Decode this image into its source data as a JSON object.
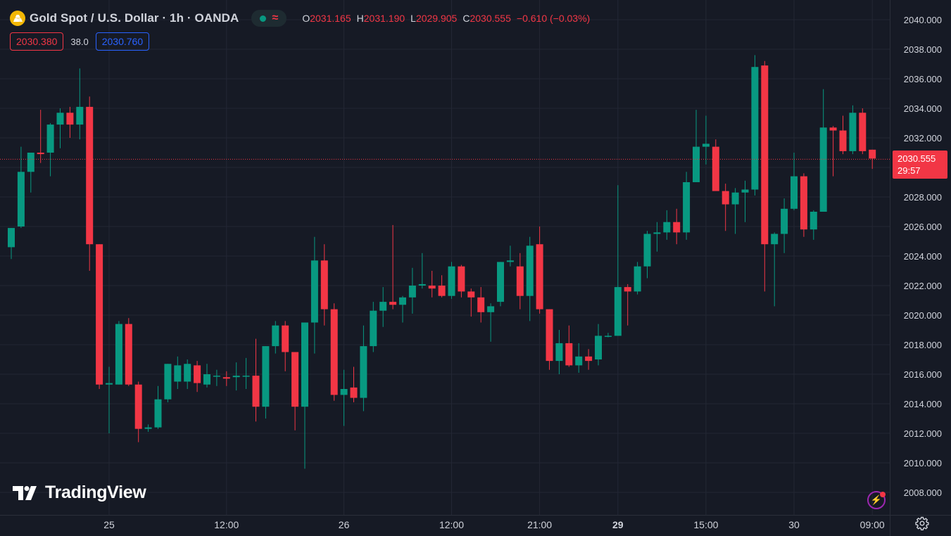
{
  "header": {
    "symbol_title": "Gold Spot / U.S. Dollar · 1h · OANDA",
    "ohlc": {
      "o_label": "O",
      "o_value": "2031.165",
      "h_label": "H",
      "h_value": "2031.190",
      "l_label": "L",
      "l_value": "2029.905",
      "c_label": "C",
      "c_value": "2030.555",
      "change": "−0.610 (−0.03%)"
    }
  },
  "quote": {
    "sell": "2030.380",
    "spread": "38.0",
    "buy": "2030.760"
  },
  "price_tag": {
    "price": "2030.555",
    "countdown": "29:57"
  },
  "logo_text": "TradingView",
  "icons": {
    "symbol": "gold-bars-icon",
    "status_dot": "market-open-dot-icon",
    "wave": "wave-icon",
    "alert": "lightning-bolt-icon",
    "settings": "gear-icon",
    "logo": "tradingview-logo-icon"
  },
  "colors": {
    "background": "#161a25",
    "up": "#089981",
    "down": "#f23645",
    "grid": "#232734",
    "axis_text": "#d1d4dc"
  },
  "chart_data": {
    "type": "candlestick",
    "title": "Gold Spot / U.S. Dollar · 1h · OANDA",
    "y_axis_side": "right",
    "ylim": [
      2007,
      2041
    ],
    "y_ticks": [
      "2040.000",
      "2038.000",
      "2036.000",
      "2034.000",
      "2032.000",
      "2030.000",
      "2028.000",
      "2026.000",
      "2024.000",
      "2022.000",
      "2020.000",
      "2018.000",
      "2016.000",
      "2014.000",
      "2012.000",
      "2010.000",
      "2008.000"
    ],
    "x_ticks": [
      {
        "label": "25",
        "index": 10,
        "bold": false
      },
      {
        "label": "12:00",
        "index": 22,
        "bold": false
      },
      {
        "label": "26",
        "index": 34,
        "bold": false
      },
      {
        "label": "12:00",
        "index": 45,
        "bold": false
      },
      {
        "label": "21:00",
        "index": 54,
        "bold": false
      },
      {
        "label": "29",
        "index": 62,
        "bold": true
      },
      {
        "label": "15:00",
        "index": 71,
        "bold": false
      },
      {
        "label": "30",
        "index": 80,
        "bold": false
      },
      {
        "label": "09:00",
        "index": 88,
        "bold": false
      }
    ],
    "last_price": 2030.555,
    "candles": [
      {
        "o": 2024.6,
        "h": 2025.9,
        "l": 2023.8,
        "c": 2025.9
      },
      {
        "o": 2026.0,
        "h": 2031.4,
        "l": 2025.9,
        "c": 2029.7
      },
      {
        "o": 2029.7,
        "h": 2031.0,
        "l": 2028.3,
        "c": 2031.0
      },
      {
        "o": 2031.0,
        "h": 2033.9,
        "l": 2030.3,
        "c": 2030.9
      },
      {
        "o": 2031.0,
        "h": 2033.0,
        "l": 2029.4,
        "c": 2032.9
      },
      {
        "o": 2032.9,
        "h": 2034.0,
        "l": 2031.3,
        "c": 2033.7
      },
      {
        "o": 2033.7,
        "h": 2034.1,
        "l": 2032.0,
        "c": 2032.9
      },
      {
        "o": 2032.9,
        "h": 2036.7,
        "l": 2031.9,
        "c": 2034.1
      },
      {
        "o": 2034.1,
        "h": 2034.8,
        "l": 2023.0,
        "c": 2024.8
      },
      {
        "o": 2024.8,
        "h": 2024.8,
        "l": 2015.0,
        "c": 2015.3
      },
      {
        "o": 2015.3,
        "h": 2016.5,
        "l": 2012.0,
        "c": 2015.4
      },
      {
        "o": 2015.3,
        "h": 2019.6,
        "l": 2015.3,
        "c": 2019.4
      },
      {
        "o": 2019.4,
        "h": 2019.8,
        "l": 2015.2,
        "c": 2015.3
      },
      {
        "o": 2015.3,
        "h": 2015.5,
        "l": 2011.4,
        "c": 2012.3
      },
      {
        "o": 2012.3,
        "h": 2012.6,
        "l": 2012.1,
        "c": 2012.4
      },
      {
        "o": 2012.4,
        "h": 2015.2,
        "l": 2012.3,
        "c": 2014.3
      },
      {
        "o": 2014.3,
        "h": 2016.7,
        "l": 2014.1,
        "c": 2016.7
      },
      {
        "o": 2015.5,
        "h": 2017.2,
        "l": 2015.0,
        "c": 2016.6
      },
      {
        "o": 2015.5,
        "h": 2017.0,
        "l": 2015.0,
        "c": 2016.7
      },
      {
        "o": 2016.6,
        "h": 2016.9,
        "l": 2014.8,
        "c": 2015.4
      },
      {
        "o": 2015.3,
        "h": 2016.7,
        "l": 2015.1,
        "c": 2016.0
      },
      {
        "o": 2015.9,
        "h": 2016.3,
        "l": 2015.2,
        "c": 2015.9
      },
      {
        "o": 2015.8,
        "h": 2016.2,
        "l": 2015.2,
        "c": 2015.7
      },
      {
        "o": 2015.8,
        "h": 2016.8,
        "l": 2014.9,
        "c": 2015.9
      },
      {
        "o": 2015.9,
        "h": 2017.1,
        "l": 2015.0,
        "c": 2015.9
      },
      {
        "o": 2015.9,
        "h": 2018.4,
        "l": 2012.8,
        "c": 2013.8
      },
      {
        "o": 2013.8,
        "h": 2017.9,
        "l": 2013.0,
        "c": 2017.9
      },
      {
        "o": 2017.9,
        "h": 2019.6,
        "l": 2017.4,
        "c": 2019.3
      },
      {
        "o": 2019.3,
        "h": 2019.6,
        "l": 2016.2,
        "c": 2017.5
      },
      {
        "o": 2017.5,
        "h": 2017.5,
        "l": 2012.2,
        "c": 2013.8
      },
      {
        "o": 2013.8,
        "h": 2019.4,
        "l": 2009.6,
        "c": 2019.5
      },
      {
        "o": 2019.5,
        "h": 2025.3,
        "l": 2017.4,
        "c": 2023.7
      },
      {
        "o": 2023.7,
        "h": 2024.8,
        "l": 2019.3,
        "c": 2020.4
      },
      {
        "o": 2020.4,
        "h": 2020.8,
        "l": 2014.2,
        "c": 2014.6
      },
      {
        "o": 2014.6,
        "h": 2016.3,
        "l": 2012.5,
        "c": 2015.0
      },
      {
        "o": 2015.1,
        "h": 2016.5,
        "l": 2014.1,
        "c": 2014.4
      },
      {
        "o": 2014.4,
        "h": 2019.3,
        "l": 2013.5,
        "c": 2017.9
      },
      {
        "o": 2017.9,
        "h": 2020.9,
        "l": 2017.5,
        "c": 2020.3
      },
      {
        "o": 2020.3,
        "h": 2021.9,
        "l": 2019.2,
        "c": 2020.9
      },
      {
        "o": 2020.9,
        "h": 2026.1,
        "l": 2020.4,
        "c": 2020.7
      },
      {
        "o": 2020.7,
        "h": 2021.3,
        "l": 2019.5,
        "c": 2021.2
      },
      {
        "o": 2021.2,
        "h": 2023.2,
        "l": 2020.1,
        "c": 2022.0
      },
      {
        "o": 2022.0,
        "h": 2024.2,
        "l": 2021.8,
        "c": 2022.1
      },
      {
        "o": 2022.0,
        "h": 2023.0,
        "l": 2021.2,
        "c": 2021.8
      },
      {
        "o": 2022.0,
        "h": 2022.7,
        "l": 2021.2,
        "c": 2021.3
      },
      {
        "o": 2021.3,
        "h": 2023.6,
        "l": 2021.1,
        "c": 2023.3
      },
      {
        "o": 2023.3,
        "h": 2023.4,
        "l": 2021.2,
        "c": 2021.6
      },
      {
        "o": 2021.6,
        "h": 2021.8,
        "l": 2019.9,
        "c": 2021.2
      },
      {
        "o": 2021.2,
        "h": 2021.9,
        "l": 2019.5,
        "c": 2020.2
      },
      {
        "o": 2020.2,
        "h": 2020.8,
        "l": 2018.2,
        "c": 2020.6
      },
      {
        "o": 2020.9,
        "h": 2023.6,
        "l": 2020.6,
        "c": 2023.6
      },
      {
        "o": 2023.6,
        "h": 2024.7,
        "l": 2023.3,
        "c": 2023.7
      },
      {
        "o": 2023.3,
        "h": 2024.2,
        "l": 2020.4,
        "c": 2021.3
      },
      {
        "o": 2021.3,
        "h": 2025.3,
        "l": 2019.6,
        "c": 2024.7
      },
      {
        "o": 2024.8,
        "h": 2026.0,
        "l": 2020.1,
        "c": 2020.4
      },
      {
        "o": 2020.4,
        "h": 2020.4,
        "l": 2016.3,
        "c": 2016.9
      },
      {
        "o": 2016.9,
        "h": 2019.0,
        "l": 2016.0,
        "c": 2018.1
      },
      {
        "o": 2018.1,
        "h": 2019.3,
        "l": 2016.5,
        "c": 2016.6
      },
      {
        "o": 2016.6,
        "h": 2018.1,
        "l": 2016.1,
        "c": 2017.2
      },
      {
        "o": 2017.2,
        "h": 2017.7,
        "l": 2016.3,
        "c": 2016.9
      },
      {
        "o": 2017.0,
        "h": 2019.4,
        "l": 2016.6,
        "c": 2018.6
      },
      {
        "o": 2018.6,
        "h": 2018.8,
        "l": 2018.5,
        "c": 2018.6
      },
      {
        "o": 2018.6,
        "h": 2028.8,
        "l": 2018.6,
        "c": 2021.9
      },
      {
        "o": 2021.9,
        "h": 2022.1,
        "l": 2019.3,
        "c": 2021.6
      },
      {
        "o": 2021.6,
        "h": 2023.6,
        "l": 2021.4,
        "c": 2023.3
      },
      {
        "o": 2023.3,
        "h": 2025.7,
        "l": 2022.5,
        "c": 2025.5
      },
      {
        "o": 2025.5,
        "h": 2026.3,
        "l": 2024.3,
        "c": 2025.6
      },
      {
        "o": 2025.6,
        "h": 2027.1,
        "l": 2025.1,
        "c": 2026.3
      },
      {
        "o": 2026.3,
        "h": 2027.2,
        "l": 2024.8,
        "c": 2025.6
      },
      {
        "o": 2025.6,
        "h": 2029.7,
        "l": 2025.1,
        "c": 2029.0
      },
      {
        "o": 2029.0,
        "h": 2033.9,
        "l": 2029.0,
        "c": 2031.4
      },
      {
        "o": 2031.4,
        "h": 2033.5,
        "l": 2030.2,
        "c": 2031.6
      },
      {
        "o": 2031.4,
        "h": 2031.9,
        "l": 2028.7,
        "c": 2028.4
      },
      {
        "o": 2028.4,
        "h": 2028.9,
        "l": 2025.7,
        "c": 2027.5
      },
      {
        "o": 2027.5,
        "h": 2028.6,
        "l": 2025.5,
        "c": 2028.3
      },
      {
        "o": 2028.3,
        "h": 2029.1,
        "l": 2026.3,
        "c": 2028.5
      },
      {
        "o": 2028.5,
        "h": 2037.6,
        "l": 2028.1,
        "c": 2036.8
      },
      {
        "o": 2036.9,
        "h": 2037.2,
        "l": 2021.6,
        "c": 2024.8
      },
      {
        "o": 2024.8,
        "h": 2025.6,
        "l": 2020.6,
        "c": 2025.5
      },
      {
        "o": 2025.5,
        "h": 2027.9,
        "l": 2024.2,
        "c": 2027.2
      },
      {
        "o": 2027.2,
        "h": 2031.0,
        "l": 2027.1,
        "c": 2029.4
      },
      {
        "o": 2029.4,
        "h": 2029.6,
        "l": 2025.3,
        "c": 2025.8
      },
      {
        "o": 2025.8,
        "h": 2027.1,
        "l": 2025.1,
        "c": 2027.0
      },
      {
        "o": 2027.0,
        "h": 2035.3,
        "l": 2027.0,
        "c": 2032.7
      },
      {
        "o": 2032.7,
        "h": 2032.8,
        "l": 2029.4,
        "c": 2032.5
      },
      {
        "o": 2032.5,
        "h": 2033.5,
        "l": 2030.9,
        "c": 2031.1
      },
      {
        "o": 2031.1,
        "h": 2034.2,
        "l": 2030.9,
        "c": 2033.7
      },
      {
        "o": 2033.7,
        "h": 2034.0,
        "l": 2030.9,
        "c": 2031.1
      },
      {
        "o": 2031.2,
        "h": 2031.2,
        "l": 2029.9,
        "c": 2030.6
      }
    ]
  }
}
